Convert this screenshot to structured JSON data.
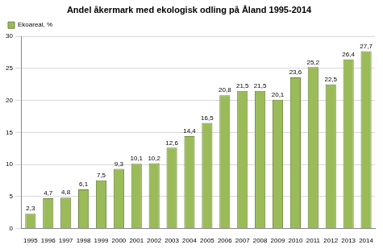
{
  "chart_data": {
    "type": "bar",
    "title": "Andel åkermark med ekologisk odling på Åland 1995-2014",
    "categories": [
      "1995",
      "1996",
      "1997",
      "1998",
      "1999",
      "2000",
      "2001",
      "2002",
      "2003",
      "2004",
      "2005",
      "2006",
      "2007",
      "2008",
      "2009",
      "2010",
      "2011",
      "2012",
      "2013",
      "2014"
    ],
    "series": [
      {
        "name": "Ekoareal, %",
        "color": "#9bbb59",
        "values": [
          2.3,
          4.7,
          4.8,
          6.1,
          7.5,
          9.3,
          10.1,
          10.2,
          12.6,
          14.4,
          16.5,
          20.8,
          21.5,
          21.5,
          20.1,
          23.6,
          25.2,
          22.5,
          26.4,
          27.7
        ],
        "value_labels": [
          "2,3",
          "4,7",
          "4,8",
          "6,1",
          "7,5",
          "9,3",
          "10,1",
          "10,2",
          "12,6",
          "14,4",
          "16,5",
          "20,8",
          "21,5",
          "21,5",
          "20,1",
          "23,6",
          "25,2",
          "22,5",
          "26,4",
          "27,7"
        ]
      }
    ],
    "ylim": [
      0,
      30
    ],
    "yticks": [
      0,
      5,
      10,
      15,
      20,
      25,
      30
    ],
    "grid": true,
    "legend": "upper left",
    "data_labels": true
  }
}
